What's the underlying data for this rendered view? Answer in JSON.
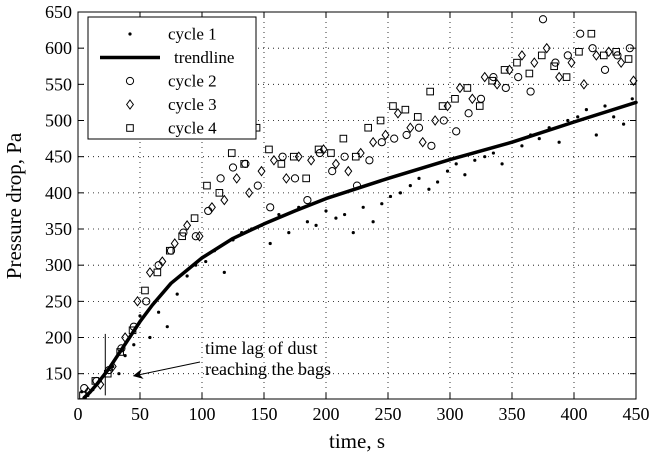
{
  "chart_data": {
    "type": "scatter",
    "title": "",
    "xlabel": "time, s",
    "ylabel": "Pressure drop, Pa",
    "xlim": [
      0,
      450
    ],
    "ylim": [
      115,
      650
    ],
    "xticks": [
      0,
      50,
      100,
      150,
      200,
      250,
      300,
      350,
      400,
      450
    ],
    "yticks": [
      150,
      200,
      250,
      300,
      350,
      400,
      450,
      500,
      550,
      600,
      650
    ],
    "grid": true,
    "legend_position": "top-left",
    "annotation": {
      "lines": [
        "time lag of dust",
        "reaching the bags"
      ],
      "arrow_target": [
        45,
        147
      ],
      "marker_x": 22,
      "marker_y_range": [
        120,
        205
      ]
    },
    "trendline": {
      "name": "trendline",
      "x": [
        5,
        10,
        15,
        20,
        25,
        30,
        40,
        50,
        60,
        75,
        100,
        125,
        150,
        175,
        200,
        250,
        300,
        350,
        400,
        450
      ],
      "values": [
        117,
        125,
        135,
        146,
        157,
        170,
        196,
        222,
        245,
        275,
        310,
        337,
        357,
        375,
        392,
        420,
        446,
        470,
        498,
        525
      ]
    },
    "series": [
      {
        "name": "cycle 1",
        "marker": "dot",
        "x": [
          3,
          8,
          12,
          18,
          22,
          28,
          33,
          38,
          45,
          50,
          58,
          65,
          72,
          80,
          88,
          95,
          103,
          110,
          118,
          125,
          132,
          140,
          148,
          155,
          162,
          170,
          178,
          185,
          192,
          200,
          208,
          215,
          222,
          230,
          238,
          245,
          252,
          260,
          268,
          275,
          283,
          290,
          298,
          305,
          312,
          320,
          328,
          335,
          342,
          350,
          358,
          365,
          372,
          380,
          388,
          395,
          403,
          410,
          418,
          425,
          432,
          440,
          447
        ],
        "values": [
          125,
          120,
          128,
          140,
          150,
          160,
          150,
          175,
          190,
          230,
          200,
          235,
          215,
          260,
          285,
          300,
          305,
          320,
          290,
          335,
          345,
          350,
          355,
          330,
          370,
          345,
          380,
          360,
          355,
          375,
          365,
          370,
          345,
          380,
          360,
          385,
          395,
          400,
          410,
          420,
          405,
          415,
          430,
          440,
          425,
          445,
          450,
          455,
          440,
          470,
          465,
          480,
          475,
          490,
          470,
          500,
          505,
          515,
          480,
          520,
          505,
          495,
          530
        ]
      },
      {
        "name": "cycle 2",
        "marker": "circle",
        "x": [
          5,
          15,
          25,
          35,
          45,
          55,
          65,
          75,
          85,
          95,
          105,
          115,
          125,
          135,
          145,
          155,
          165,
          175,
          185,
          195,
          205,
          215,
          225,
          235,
          245,
          255,
          265,
          275,
          285,
          295,
          305,
          315,
          325,
          335,
          345,
          355,
          365,
          375,
          385,
          395,
          405,
          415,
          425,
          435,
          445
        ],
        "values": [
          130,
          140,
          155,
          185,
          215,
          250,
          300,
          320,
          345,
          340,
          375,
          420,
          435,
          440,
          410,
          380,
          450,
          420,
          390,
          455,
          430,
          450,
          410,
          445,
          470,
          475,
          480,
          490,
          465,
          500,
          485,
          510,
          530,
          560,
          545,
          560,
          540,
          640,
          580,
          590,
          620,
          600,
          570,
          590,
          600
        ]
      },
      {
        "name": "cycle 3",
        "marker": "diamond",
        "x": [
          8,
          18,
          28,
          38,
          48,
          58,
          68,
          78,
          88,
          98,
          108,
          118,
          128,
          138,
          148,
          158,
          168,
          178,
          188,
          198,
          208,
          218,
          228,
          238,
          248,
          258,
          268,
          278,
          288,
          298,
          308,
          318,
          328,
          338,
          348,
          358,
          368,
          378,
          388,
          398,
          408,
          418,
          428,
          438,
          448
        ],
        "values": [
          125,
          135,
          160,
          200,
          250,
          290,
          305,
          330,
          355,
          340,
          380,
          390,
          420,
          400,
          430,
          445,
          420,
          450,
          445,
          460,
          440,
          430,
          455,
          470,
          480,
          510,
          490,
          470,
          500,
          520,
          545,
          530,
          560,
          550,
          570,
          590,
          580,
          600,
          560,
          580,
          550,
          590,
          595,
          580,
          555
        ]
      },
      {
        "name": "cycle 4",
        "marker": "square",
        "x": [
          4,
          14,
          24,
          34,
          44,
          54,
          64,
          74,
          84,
          94,
          104,
          114,
          124,
          134,
          144,
          154,
          164,
          174,
          184,
          194,
          204,
          214,
          224,
          234,
          244,
          254,
          264,
          274,
          284,
          294,
          304,
          314,
          324,
          334,
          344,
          354,
          364,
          374,
          384,
          394,
          404,
          414,
          424,
          434,
          444
        ],
        "values": [
          120,
          140,
          150,
          180,
          210,
          265,
          290,
          320,
          340,
          365,
          410,
          400,
          455,
          440,
          490,
          460,
          440,
          450,
          420,
          460,
          455,
          475,
          450,
          490,
          500,
          520,
          515,
          505,
          540,
          520,
          530,
          545,
          520,
          555,
          570,
          580,
          565,
          590,
          575,
          560,
          595,
          620,
          590,
          595,
          585
        ]
      }
    ]
  }
}
